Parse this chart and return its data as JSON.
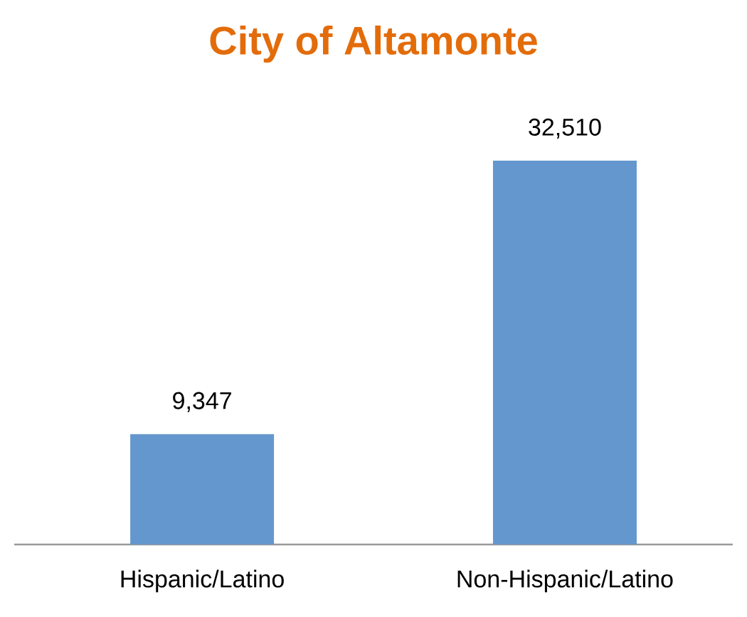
{
  "chart_data": {
    "type": "bar",
    "title": "City of Altamonte",
    "categories": [
      "Hispanic/Latino",
      "Non-Hispanic/Latino"
    ],
    "values": [
      9347,
      32510
    ],
    "value_labels": [
      "9,347",
      "32,510"
    ],
    "color": "#6497cd"
  }
}
